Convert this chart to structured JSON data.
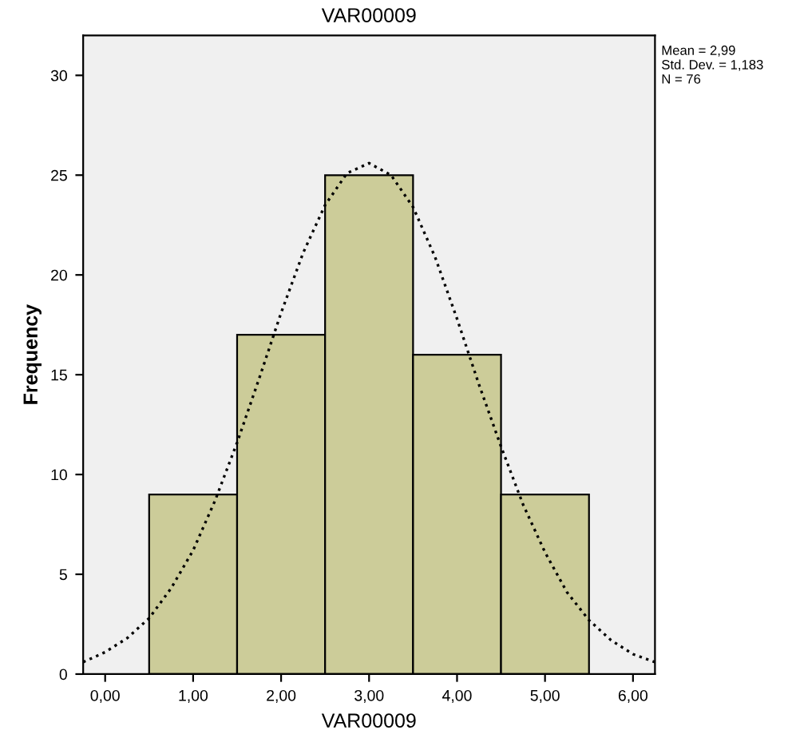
{
  "chart_data": {
    "type": "histogram",
    "title": "VAR00009",
    "xlabel": "VAR00009",
    "ylabel": "Frequency",
    "series": [
      {
        "type": "histogram",
        "bins": [
          0.5,
          1.5,
          2.5,
          3.5,
          4.5,
          5.5
        ],
        "values": [
          9,
          17,
          25,
          16,
          9
        ],
        "color": "#cccc99"
      },
      {
        "type": "line",
        "color": "#000000",
        "line_style": "dotted",
        "x": [
          -0.25,
          0,
          0.25,
          0.5,
          0.75,
          1,
          1.25,
          1.5,
          1.75,
          2,
          2.25,
          2.5,
          2.75,
          3,
          3.25,
          3.5,
          3.75,
          4,
          4.25,
          4.5,
          4.75,
          5,
          5.25,
          5.5,
          5.75,
          6,
          6.25
        ],
        "values": [
          0.6,
          1.1,
          1.8,
          2.8,
          4.3,
          6.2,
          8.7,
          11.6,
          14.8,
          18.1,
          21.1,
          23.5,
          25.1,
          25.6,
          25.0,
          23.4,
          20.9,
          17.8,
          14.5,
          11.4,
          8.5,
          6.1,
          4.1,
          2.7,
          1.7,
          1.0,
          0.6
        ]
      }
    ],
    "xlim": [
      -0.25,
      6.25
    ],
    "ylim": [
      0,
      32
    ],
    "xticks": [
      {
        "value": 0,
        "label": "0,00"
      },
      {
        "value": 1,
        "label": "1,00"
      },
      {
        "value": 2,
        "label": "2,00"
      },
      {
        "value": 3,
        "label": "3,00"
      },
      {
        "value": 4,
        "label": "4,00"
      },
      {
        "value": 5,
        "label": "5,00"
      },
      {
        "value": 6,
        "label": "6,00"
      }
    ],
    "yticks": [
      0,
      5,
      10,
      15,
      20,
      25,
      30
    ],
    "annotations": [
      "Mean = 2,99\nStd. Dev. = 1,183\nN = 76"
    ],
    "grid": false,
    "legend": false
  }
}
